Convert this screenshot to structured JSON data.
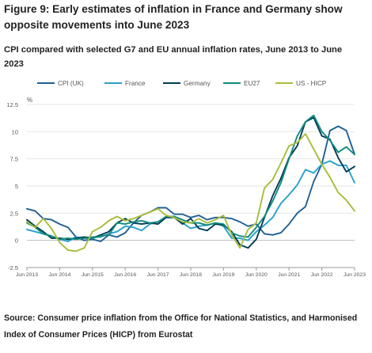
{
  "figure": {
    "title": "Figure 9: Early estimates of inflation in France and Germany show opposite movements into June 2023",
    "subtitle": "CPI compared with selected G7 and EU annual inflation rates, June 2013 to June 2023",
    "source": "Source: Consumer price inflation from the Office for National Statistics, and Harmonised Index of Consumer Prices (HICP) from Eurostat"
  },
  "chart_data": {
    "type": "line",
    "title": "CPI compared with selected G7 and EU annual inflation rates, June 2013 to June 2023",
    "xlabel": "",
    "ylabel": "%",
    "ylim": [
      -2.5,
      12.5
    ],
    "y_ticks": [
      "-2.5",
      "0",
      "2.5",
      "5",
      "7.5",
      "10",
      "12.5"
    ],
    "x_ticks": [
      "Jun 2013",
      "Jun 2014",
      "Jun 2015",
      "Jun 2016",
      "Jun 2017",
      "Jun 2018",
      "Jun 2019",
      "Jun 2020",
      "Jun 2021",
      "Jun 2022",
      "Jun 2023"
    ],
    "x_note": "quarterly points from Jun 2013 to Jun 2023 (41 points)",
    "grid": "horizontal",
    "legend_position": "top",
    "series": [
      {
        "name": "CPI (UK)",
        "color": "#206095",
        "values": [
          2.9,
          2.7,
          2.0,
          1.9,
          1.5,
          1.2,
          0.3,
          0.0,
          0.1,
          -0.1,
          0.5,
          0.3,
          0.7,
          1.6,
          2.3,
          2.6,
          3.0,
          3.0,
          2.4,
          2.4,
          2.1,
          2.3,
          1.9,
          2.1,
          2.1,
          2.0,
          1.7,
          1.3,
          1.5,
          0.6,
          0.5,
          0.7,
          1.5,
          2.5,
          3.1,
          5.4,
          7.0,
          10.1,
          10.5,
          10.1,
          7.9
        ]
      },
      {
        "name": "France",
        "color": "#27a0cc",
        "values": [
          1.0,
          0.8,
          0.6,
          0.4,
          0.1,
          -0.1,
          0.3,
          0.2,
          0.3,
          0.3,
          0.6,
          0.8,
          1.3,
          1.2,
          0.9,
          1.5,
          1.7,
          2.1,
          2.2,
          1.6,
          1.1,
          1.3,
          1.4,
          1.6,
          1.3,
          0.2,
          0.2,
          0.0,
          0.8,
          1.4,
          2.1,
          3.4,
          4.2,
          5.1,
          6.5,
          6.2,
          7.0,
          7.3,
          6.9,
          6.9,
          5.3
        ]
      },
      {
        "name": "Germany",
        "color": "#003c57",
        "values": [
          1.9,
          1.3,
          0.8,
          0.2,
          0.2,
          0.1,
          0.2,
          0.3,
          0.2,
          0.5,
          0.8,
          1.6,
          2.0,
          1.6,
          1.5,
          1.6,
          1.5,
          2.1,
          2.1,
          1.5,
          2.0,
          1.1,
          0.9,
          1.5,
          1.4,
          0.8,
          -0.4,
          -0.7,
          0.1,
          2.1,
          4.1,
          5.7,
          7.6,
          8.7,
          10.9,
          11.3,
          9.6,
          9.3,
          7.6,
          6.3,
          6.8
        ]
      },
      {
        "name": "EU27",
        "color": "#118c7b",
        "values": [
          1.6,
          1.2,
          0.6,
          0.4,
          0.1,
          0.2,
          0.1,
          0.2,
          0.2,
          0.4,
          0.5,
          1.6,
          1.5,
          1.7,
          1.8,
          1.6,
          1.7,
          2.2,
          2.2,
          1.9,
          1.6,
          1.6,
          1.4,
          1.6,
          1.5,
          0.7,
          0.4,
          0.3,
          1.2,
          2.2,
          3.6,
          5.3,
          7.5,
          9.6,
          10.9,
          11.5,
          10.0,
          9.2,
          8.1,
          8.6,
          7.9
        ]
      },
      {
        "name": "US - HICP",
        "color": "#a8bd3a",
        "values": [
          1.7,
          1.2,
          2.0,
          1.1,
          -0.2,
          -0.9,
          -1.0,
          -0.7,
          0.8,
          1.2,
          1.8,
          2.2,
          1.8,
          2.0,
          2.3,
          2.6,
          2.9,
          2.3,
          2.1,
          1.7,
          1.6,
          2.0,
          1.6,
          1.9,
          2.3,
          0.5,
          -0.7,
          1.0,
          1.6,
          4.8,
          5.6,
          7.1,
          8.7,
          9.0,
          9.8,
          8.4,
          7.0,
          5.8,
          4.4,
          3.7,
          2.7
        ]
      }
    ]
  }
}
